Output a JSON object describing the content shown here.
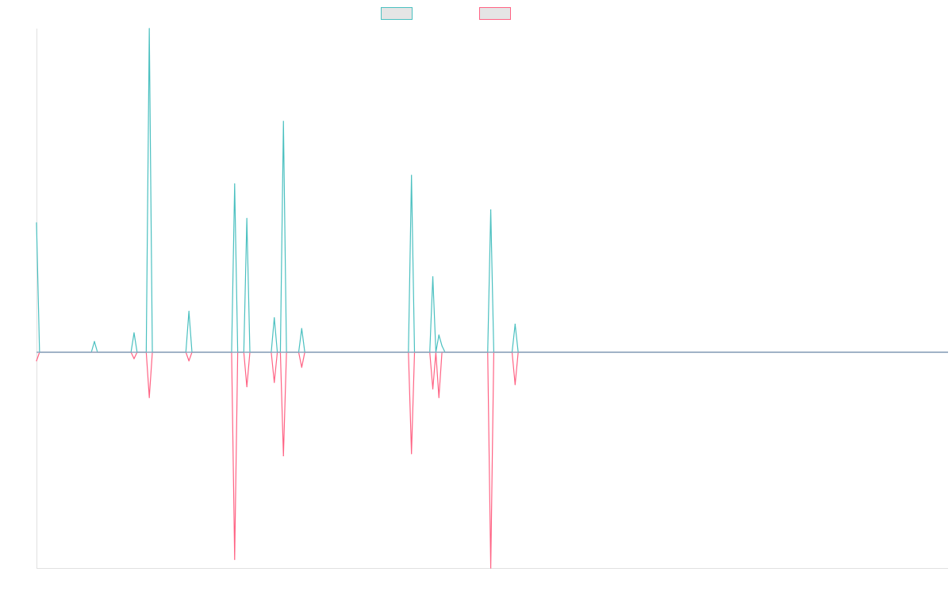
{
  "chart_data": {
    "type": "line",
    "title": "",
    "xlabel": "",
    "ylabel": "",
    "grid": false,
    "legend_position": "top-center",
    "x_count": 300,
    "ylim": [
      -100,
      150
    ],
    "baseline": 0,
    "colors": {
      "positive": "#4bc0c0",
      "negative": "#ff6384",
      "axis": "#e0e0e0",
      "legend_fill": "#e5e5e5"
    },
    "series": [
      {
        "color": "#4bc0c0",
        "points": [
          [
            0,
            60
          ],
          [
            1,
            0
          ],
          [
            18,
            0
          ],
          [
            19,
            5
          ],
          [
            20,
            0
          ],
          [
            31,
            0
          ],
          [
            32,
            9
          ],
          [
            33,
            0
          ],
          [
            36,
            0
          ],
          [
            37,
            150
          ],
          [
            38,
            0
          ],
          [
            49,
            0
          ],
          [
            50,
            19
          ],
          [
            51,
            0
          ],
          [
            64,
            0
          ],
          [
            65,
            78
          ],
          [
            66,
            0
          ],
          [
            68,
            0
          ],
          [
            69,
            62
          ],
          [
            70,
            0
          ],
          [
            77,
            0
          ],
          [
            78,
            16
          ],
          [
            79,
            0
          ],
          [
            80,
            0
          ],
          [
            81,
            107
          ],
          [
            82,
            0
          ],
          [
            86,
            0
          ],
          [
            87,
            11
          ],
          [
            88,
            0
          ],
          [
            122,
            0
          ],
          [
            123,
            82
          ],
          [
            124,
            0
          ],
          [
            129,
            0
          ],
          [
            130,
            35
          ],
          [
            131,
            0
          ],
          [
            132,
            8
          ],
          [
            133,
            3
          ],
          [
            134,
            0
          ],
          [
            148,
            0
          ],
          [
            149,
            66
          ],
          [
            150,
            0
          ],
          [
            156,
            0
          ],
          [
            157,
            13
          ],
          [
            158,
            0
          ],
          [
            299,
            0
          ]
        ]
      },
      {
        "color": "#ff6384",
        "points": [
          [
            0,
            -4
          ],
          [
            1,
            0
          ],
          [
            31,
            0
          ],
          [
            32,
            -3
          ],
          [
            33,
            0
          ],
          [
            36,
            0
          ],
          [
            37,
            -21
          ],
          [
            38,
            0
          ],
          [
            49,
            0
          ],
          [
            50,
            -4
          ],
          [
            51,
            0
          ],
          [
            64,
            0
          ],
          [
            65,
            -96
          ],
          [
            66,
            0
          ],
          [
            68,
            0
          ],
          [
            69,
            -16
          ],
          [
            70,
            0
          ],
          [
            77,
            0
          ],
          [
            78,
            -14
          ],
          [
            79,
            0
          ],
          [
            80,
            0
          ],
          [
            81,
            -48
          ],
          [
            82,
            0
          ],
          [
            86,
            0
          ],
          [
            87,
            -7
          ],
          [
            88,
            0
          ],
          [
            122,
            0
          ],
          [
            123,
            -47
          ],
          [
            124,
            0
          ],
          [
            129,
            0
          ],
          [
            130,
            -17
          ],
          [
            131,
            0
          ],
          [
            132,
            -21
          ],
          [
            133,
            0
          ],
          [
            148,
            0
          ],
          [
            149,
            -100
          ],
          [
            150,
            0
          ],
          [
            156,
            0
          ],
          [
            157,
            -15
          ],
          [
            158,
            0
          ],
          [
            299,
            0
          ]
        ]
      }
    ]
  }
}
